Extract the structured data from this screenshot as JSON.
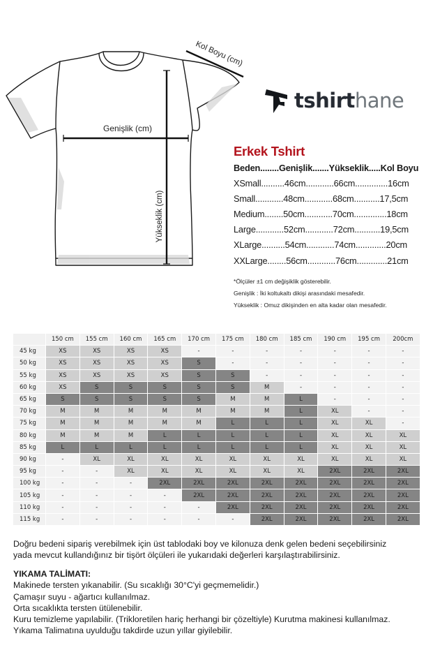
{
  "diagram": {
    "sleeve_label": "Kol Boyu (cm)",
    "width_label": "Genişlik (cm)",
    "height_label": "Yükseklik (cm)"
  },
  "logo": {
    "text_bold": "tshirt",
    "text_light": "hane"
  },
  "size_chart": {
    "title": "Erkek Tshirt",
    "header": "Beden........Genişlik.......Yükseklik.....Kol Boyu",
    "rows": [
      "XSmall..........46cm............66cm..............16cm",
      "Small............48cm............68cm...........17,5cm",
      "Medium........50cm............70cm..............18cm",
      "Large............52cm............72cm...........19,5cm",
      "XLarge..........54cm............74cm.............20cm",
      "XXLarge........56cm............76cm.............21cm"
    ],
    "notes": [
      "*Ölçüler ±1 cm değişiklik gösterebilir.",
      "Genişlik : İki koltukaltı dikişi arasındaki mesafedir.",
      "Yükseklik : Omuz dikişinden en alta kadar olan mesafedir."
    ]
  },
  "size_grid": {
    "colors": {
      "light": "#cfcfcf",
      "dark": "#858585",
      "empty": "#f3f3f3",
      "header": "#f1f1f1"
    },
    "heights": [
      "150 cm",
      "155 cm",
      "160 cm",
      "165 cm",
      "170 cm",
      "175 cm",
      "180 cm",
      "185 cm",
      "190 cm",
      "195 cm",
      "200cm"
    ],
    "rows": [
      {
        "weight": "45 kg",
        "sizes": [
          "XS",
          "XS",
          "XS",
          "XS",
          "-",
          "-",
          "-",
          "-",
          "-",
          "-",
          "-"
        ]
      },
      {
        "weight": "50 kg",
        "sizes": [
          "XS",
          "XS",
          "XS",
          "XS",
          "S",
          "-",
          "-",
          "-",
          "-",
          "-",
          "-"
        ]
      },
      {
        "weight": "55 kg",
        "sizes": [
          "XS",
          "XS",
          "XS",
          "XS",
          "S",
          "S",
          "-",
          "-",
          "-",
          "-",
          "-"
        ]
      },
      {
        "weight": "60 kg",
        "sizes": [
          "XS",
          "S",
          "S",
          "S",
          "S",
          "S",
          "M",
          "-",
          "-",
          "-",
          "-"
        ]
      },
      {
        "weight": "65 kg",
        "sizes": [
          "S",
          "S",
          "S",
          "S",
          "S",
          "M",
          "M",
          "L",
          "-",
          "-",
          "-"
        ]
      },
      {
        "weight": "70 kg",
        "sizes": [
          "M",
          "M",
          "M",
          "M",
          "M",
          "M",
          "M",
          "L",
          "XL",
          "-",
          "-"
        ]
      },
      {
        "weight": "75 kg",
        "sizes": [
          "M",
          "M",
          "M",
          "M",
          "M",
          "L",
          "L",
          "L",
          "XL",
          "XL",
          "-"
        ]
      },
      {
        "weight": "80 kg",
        "sizes": [
          "M",
          "M",
          "M",
          "L",
          "L",
          "L",
          "L",
          "L",
          "XL",
          "XL",
          "XL"
        ]
      },
      {
        "weight": "85 kg",
        "sizes": [
          "L",
          "L",
          "L",
          "L",
          "L",
          "L",
          "L",
          "L",
          "XL",
          "XL",
          "XL"
        ]
      },
      {
        "weight": "90 kg",
        "sizes": [
          "-",
          "XL",
          "XL",
          "XL",
          "XL",
          "XL",
          "XL",
          "XL",
          "XL",
          "XL",
          "XL"
        ]
      },
      {
        "weight": "95 kg",
        "sizes": [
          "-",
          "-",
          "XL",
          "XL",
          "XL",
          "XL",
          "XL",
          "XL",
          "2XL",
          "2XL",
          "2XL"
        ]
      },
      {
        "weight": "100 kg",
        "sizes": [
          "-",
          "-",
          "-",
          "2XL",
          "2XL",
          "2XL",
          "2XL",
          "2XL",
          "2XL",
          "2XL",
          "2XL"
        ]
      },
      {
        "weight": "105 kg",
        "sizes": [
          "-",
          "-",
          "-",
          "-",
          "2XL",
          "2XL",
          "2XL",
          "2XL",
          "2XL",
          "2XL",
          "2XL"
        ]
      },
      {
        "weight": "110 kg",
        "sizes": [
          "-",
          "-",
          "-",
          "-",
          "-",
          "2XL",
          "2XL",
          "2XL",
          "2XL",
          "2XL",
          "2XL"
        ]
      },
      {
        "weight": "115 kg",
        "sizes": [
          "-",
          "-",
          "-",
          "-",
          "-",
          "-",
          "2XL",
          "2XL",
          "2XL",
          "2XL",
          "2XL"
        ]
      }
    ]
  },
  "info": {
    "lines": [
      "Doğru bedeni sipariş verebilmek için üst tablodaki  boy ve kilonuza denk gelen bedeni seçebilirsiniz",
      "yada mevcut kullandığınız bir tişört ölçüleri ile yukarıdaki değerleri karşılaştırabilirsiniz."
    ],
    "wash_title": "YIKAMA TALİMATI:",
    "wash_lines": [
      "Makinede tersten yıkanabilir. (Su sıcaklığı 30°C'yi geçmemelidir.)",
      "Çamaşır suyu - ağartıcı kullanılmaz.",
      "Orta sıcaklıkta tersten ütülenebilir.",
      "Kuru temizleme yapılabilir. (Trikloretilen hariç herhangi bir çözeltiyle) Kurutma makinesi kullanılmaz.",
      "Yıkama Talimatına uyulduğu takdirde uzun yıllar giyilebilir."
    ]
  }
}
